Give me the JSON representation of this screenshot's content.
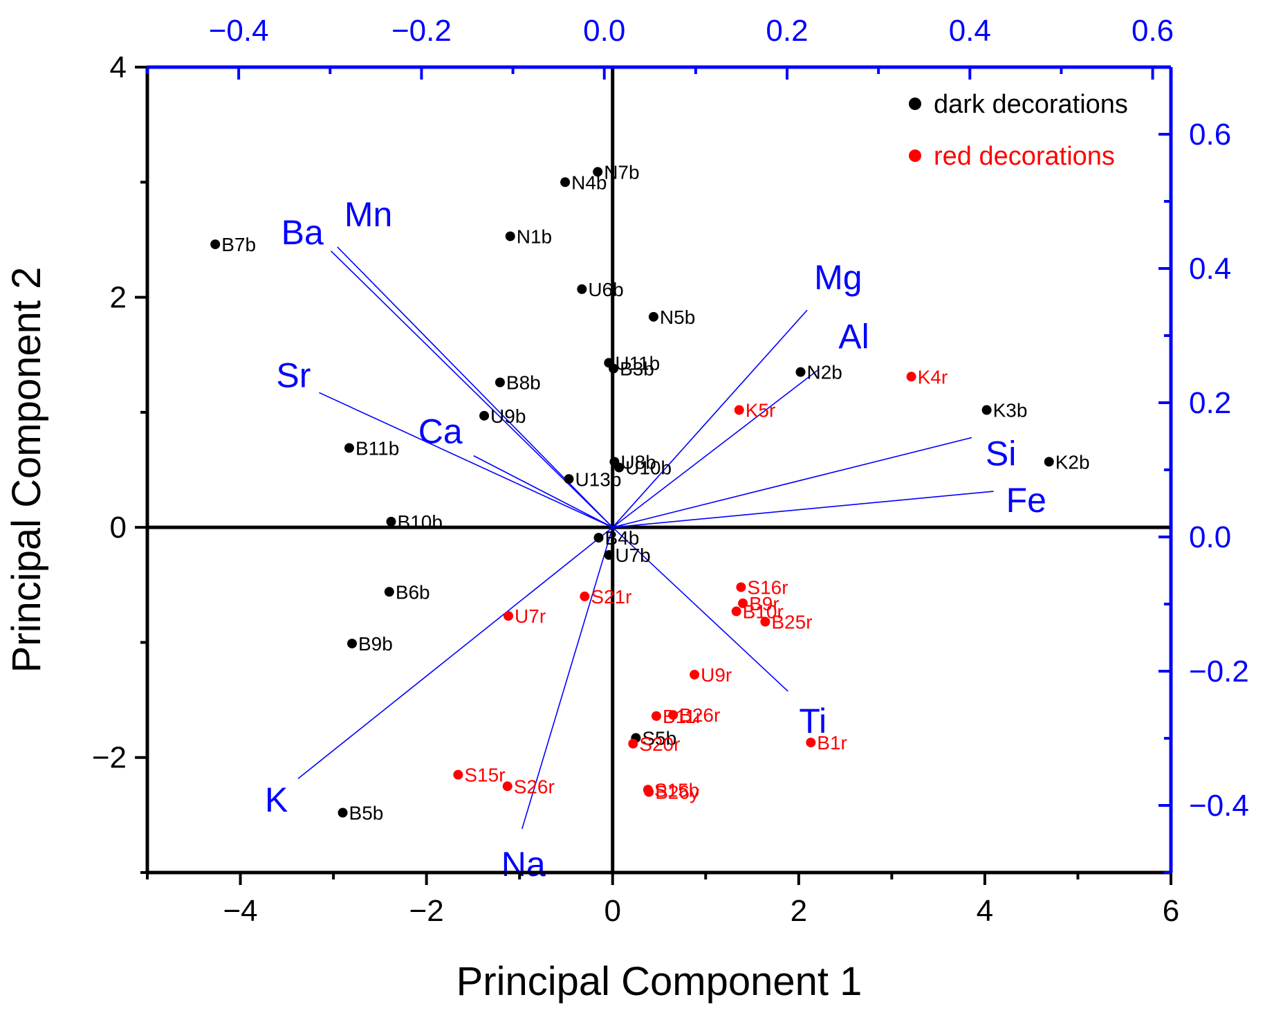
{
  "chart_data": {
    "type": "scatter",
    "subtype": "pca-biplot",
    "xlabel": "Principal Component 1",
    "ylabel": "Principal Component 2",
    "xlim": [
      -5,
      6
    ],
    "ylim": [
      -3,
      4
    ],
    "x_ticks": [
      "−4",
      "−2",
      "0",
      "2",
      "4",
      "6"
    ],
    "y_ticks": [
      "−2",
      "0",
      "2",
      "4"
    ],
    "top_axis": {
      "lim": [
        -0.5,
        0.62
      ],
      "ticks": [
        "−0.4",
        "−0.2",
        "0.0",
        "0.2",
        "0.4",
        "0.6"
      ]
    },
    "right_axis": {
      "lim": [
        -0.5,
        0.7
      ],
      "ticks": [
        "−0.4",
        "−0.2",
        "0.0",
        "0.2",
        "0.4",
        "0.6"
      ]
    },
    "legend": [
      {
        "label": "dark decorations",
        "color": "#000000"
      },
      {
        "label": "red decorations",
        "color": "#ff0000"
      }
    ],
    "series": [
      {
        "name": "dark decorations",
        "color": "#000000",
        "points": [
          {
            "label": "N7b",
            "x": -0.16,
            "y": 3.09
          },
          {
            "label": "N4b",
            "x": -0.51,
            "y": 3.0
          },
          {
            "label": "B7b",
            "x": -4.27,
            "y": 2.46
          },
          {
            "label": "N1b",
            "x": -1.1,
            "y": 2.53
          },
          {
            "label": "U6b",
            "x": -0.33,
            "y": 2.07
          },
          {
            "label": "N5b",
            "x": 0.44,
            "y": 1.83
          },
          {
            "label": "U11b",
            "x": -0.04,
            "y": 1.43
          },
          {
            "label": "B3b",
            "x": 0.01,
            "y": 1.38
          },
          {
            "label": "N2b",
            "x": 2.02,
            "y": 1.35
          },
          {
            "label": "B8b",
            "x": -1.21,
            "y": 1.26
          },
          {
            "label": "K3b",
            "x": 4.02,
            "y": 1.02
          },
          {
            "label": "U9b",
            "x": -1.38,
            "y": 0.97
          },
          {
            "label": "B11b",
            "x": -2.83,
            "y": 0.69
          },
          {
            "label": "U8b",
            "x": 0.02,
            "y": 0.57
          },
          {
            "label": "U10b",
            "x": 0.07,
            "y": 0.52
          },
          {
            "label": "K2b",
            "x": 4.69,
            "y": 0.57
          },
          {
            "label": "U13b",
            "x": -0.47,
            "y": 0.42
          },
          {
            "label": "B10b",
            "x": -2.38,
            "y": 0.05
          },
          {
            "label": "B4b",
            "x": -0.15,
            "y": -0.09
          },
          {
            "label": "U7b",
            "x": -0.04,
            "y": -0.24
          },
          {
            "label": "B6b",
            "x": -2.4,
            "y": -0.56
          },
          {
            "label": "B9b",
            "x": -2.8,
            "y": -1.01
          },
          {
            "label": "S5b",
            "x": 0.25,
            "y": -1.83
          },
          {
            "label": "B5b",
            "x": -2.9,
            "y": -2.48
          }
        ]
      },
      {
        "name": "red decorations",
        "color": "#ff0000",
        "points": [
          {
            "label": "K4r",
            "x": 3.21,
            "y": 1.31
          },
          {
            "label": "K5r",
            "x": 1.36,
            "y": 1.02
          },
          {
            "label": "S16r",
            "x": 1.38,
            "y": -0.52
          },
          {
            "label": "B9r",
            "x": 1.4,
            "y": -0.66
          },
          {
            "label": "B10r",
            "x": 1.33,
            "y": -0.73
          },
          {
            "label": "B25r",
            "x": 1.64,
            "y": -0.82
          },
          {
            "label": "S21r",
            "x": -0.3,
            "y": -0.6
          },
          {
            "label": "U7r",
            "x": -1.12,
            "y": -0.77
          },
          {
            "label": "U9r",
            "x": 0.88,
            "y": -1.28
          },
          {
            "label": "B26r",
            "x": 0.65,
            "y": -1.63
          },
          {
            "label": "B11r",
            "x": 0.47,
            "y": -1.64
          },
          {
            "label": "B1r",
            "x": 2.13,
            "y": -1.87
          },
          {
            "label": "S20r",
            "x": 0.22,
            "y": -1.88
          },
          {
            "label": "S15b",
            "x": 0.38,
            "y": -2.28
          },
          {
            "label": "B26y",
            "x": 0.39,
            "y": -2.3
          },
          {
            "label": "S15r",
            "x": -1.66,
            "y": -2.15
          },
          {
            "label": "S26r",
            "x": -1.13,
            "y": -2.25
          }
        ]
      }
    ],
    "loadings": [
      {
        "label": "Mn",
        "x": -0.292,
        "y": 0.432
      },
      {
        "label": "Ba",
        "x": -0.299,
        "y": 0.426
      },
      {
        "label": "Sr",
        "x": -0.312,
        "y": 0.215
      },
      {
        "label": "Ca",
        "x": -0.143,
        "y": 0.121
      },
      {
        "label": "Mg",
        "x": 0.222,
        "y": 0.338
      },
      {
        "label": "Al",
        "x": 0.235,
        "y": 0.25
      },
      {
        "label": "Si",
        "x": 0.402,
        "y": 0.148
      },
      {
        "label": "Fe",
        "x": 0.426,
        "y": 0.068
      },
      {
        "label": "Ti",
        "x": 0.201,
        "y": -0.23
      },
      {
        "label": "K",
        "x": -0.335,
        "y": -0.36
      },
      {
        "label": "Na",
        "x": -0.09,
        "y": -0.435
      }
    ]
  }
}
